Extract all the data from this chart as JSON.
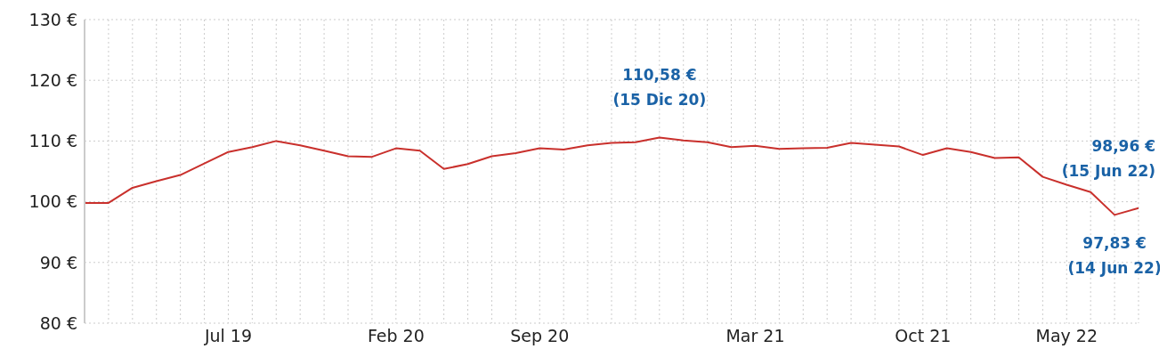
{
  "chart_data": {
    "type": "line",
    "categories": [
      null,
      null,
      null,
      null,
      null,
      null,
      "Jul 19",
      null,
      null,
      null,
      null,
      null,
      null,
      "Feb 20",
      null,
      null,
      null,
      null,
      null,
      "Sep 20",
      null,
      null,
      null,
      null,
      null,
      null,
      null,
      null,
      "Mar 21",
      null,
      null,
      null,
      null,
      null,
      null,
      "Oct 21",
      null,
      null,
      null,
      null,
      null,
      "May 22",
      null,
      null,
      null
    ],
    "series": [
      {
        "color": "#c9302c",
        "values": [
          99.8,
          99.8,
          102.3,
          103.4,
          104.4,
          106.3,
          108.2,
          109.0,
          110.0,
          109.3,
          108.4,
          107.5,
          107.4,
          108.8,
          108.4,
          105.4,
          106.2,
          107.5,
          108.0,
          108.8,
          108.6,
          109.3,
          109.7,
          109.8,
          110.58,
          110.1,
          109.8,
          109.0,
          109.2,
          108.7,
          108.8,
          108.9,
          109.7,
          109.4,
          109.1,
          107.7,
          108.8,
          108.2,
          107.2,
          107.3,
          104.1,
          102.8,
          101.6,
          97.83,
          98.96
        ]
      }
    ],
    "ylim": [
      80,
      130
    ],
    "yticks": [
      {
        "value": 80,
        "label": "80 €"
      },
      {
        "value": 90,
        "label": "90 €"
      },
      {
        "value": 100,
        "label": "100 €"
      },
      {
        "value": 110,
        "label": "110 €"
      },
      {
        "value": 120,
        "label": "120 €"
      },
      {
        "value": 130,
        "label": "130 €"
      }
    ],
    "grid": true,
    "marker": "none",
    "line_style": "solid",
    "annotations": [
      "110,58 €\n(15 Dic 20)",
      "98,96 €\n(15 Jun 22)",
      "97,83 €\n(14 Jun 22)"
    ]
  }
}
